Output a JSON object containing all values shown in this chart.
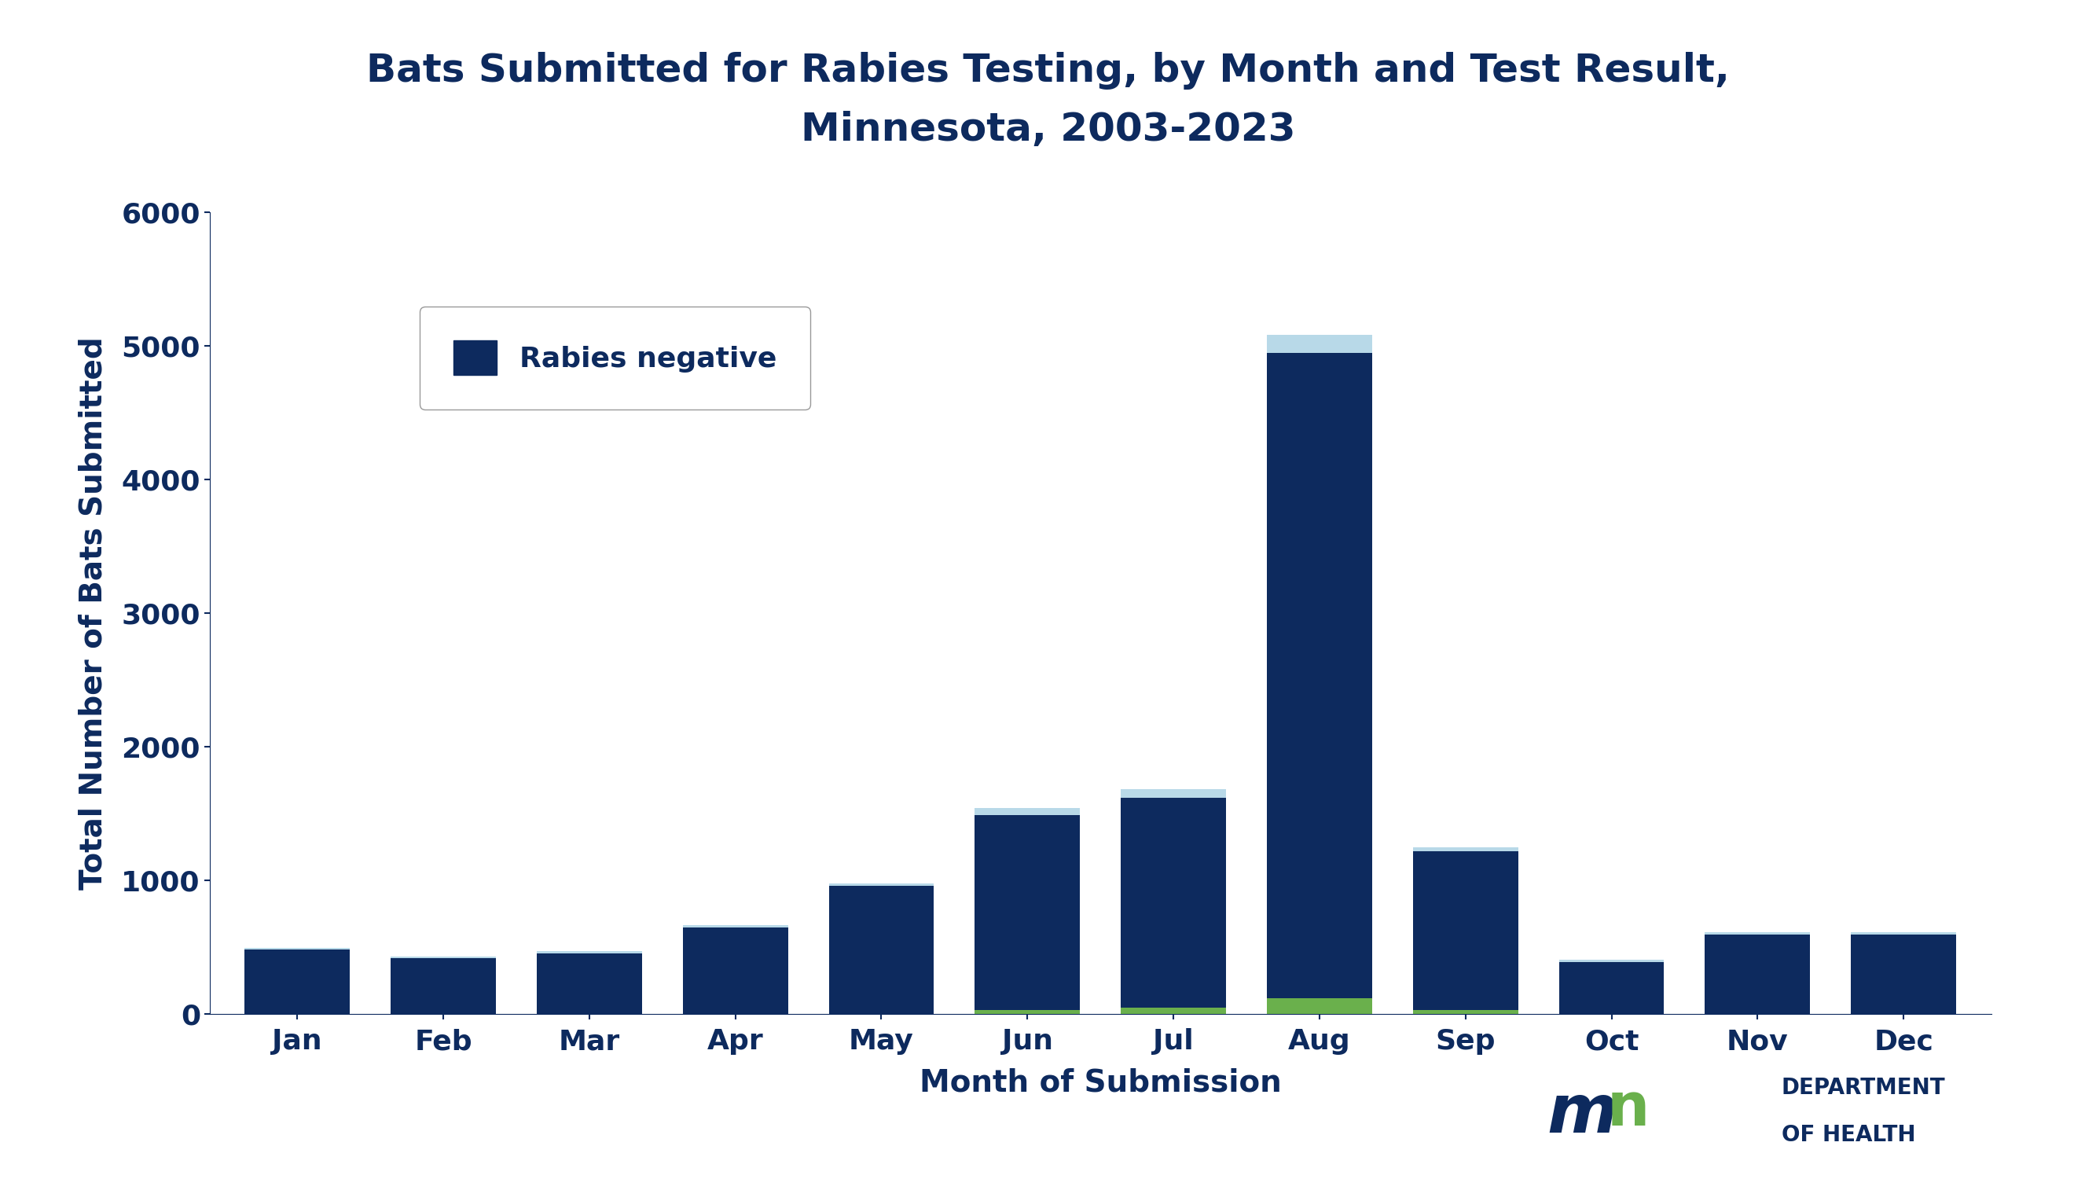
{
  "title_line1": "Bats Submitted for Rabies Testing, by Month and Test Result,",
  "title_line2": "Minnesota, 2003-2023",
  "xlabel": "Month of Submission",
  "ylabel": "Total Number of Bats Submitted",
  "months": [
    "Jan",
    "Feb",
    "Mar",
    "Apr",
    "May",
    "Jun",
    "Jul",
    "Aug",
    "Sep",
    "Oct",
    "Nov",
    "Dec"
  ],
  "negative_values": [
    480,
    415,
    455,
    650,
    960,
    1490,
    1615,
    4950,
    1215,
    390,
    595,
    595
  ],
  "positive_values": [
    0,
    0,
    0,
    0,
    0,
    30,
    45,
    120,
    30,
    0,
    0,
    0
  ],
  "total_cap_values": [
    495,
    430,
    470,
    665,
    975,
    1540,
    1680,
    5085,
    1250,
    405,
    610,
    610
  ],
  "bar_color_negative": "#0d2a5e",
  "bar_color_positive": "#6ab04c",
  "bar_color_cap": "#b8d9e8",
  "title_color": "#0d2a5e",
  "axis_color": "#0d2a5e",
  "tick_color": "#0d2a5e",
  "legend_label_negative": "Rabies negative",
  "ylim": [
    0,
    6000
  ],
  "yticks": [
    0,
    1000,
    2000,
    3000,
    4000,
    5000,
    6000
  ],
  "background_color": "#ffffff",
  "title_fontsize": 36,
  "axis_label_fontsize": 28,
  "tick_fontsize": 26,
  "legend_fontsize": 26
}
